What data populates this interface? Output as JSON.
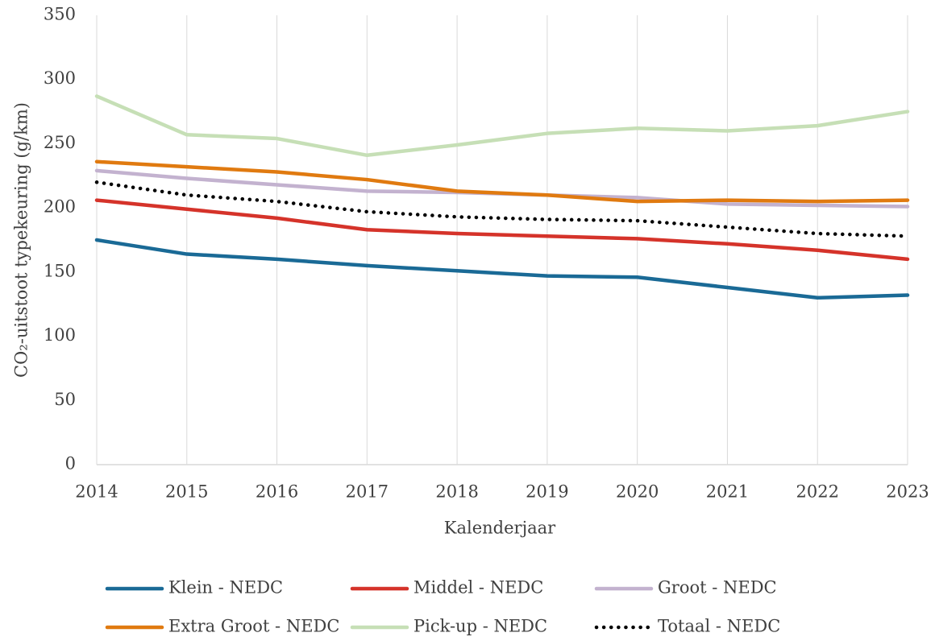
{
  "chart_data": {
    "type": "line",
    "x_label": "Kalenderjaar",
    "y_label": "CO₂-uitstoot typekeuring (g/km)",
    "x": [
      2014,
      2015,
      2016,
      2017,
      2018,
      2019,
      2020,
      2021,
      2022,
      2023
    ],
    "xlim": [
      2014,
      2023
    ],
    "xticks": [
      2014,
      2015,
      2016,
      2017,
      2018,
      2019,
      2020,
      2021,
      2022,
      2023
    ],
    "ylim": [
      0,
      350
    ],
    "yticks": [
      0,
      50,
      100,
      150,
      200,
      250,
      300,
      350
    ],
    "grid": true,
    "legend": "bottom",
    "series": [
      {
        "name": "Klein - NEDC",
        "color": "#1a6a96",
        "values": [
          175,
          164,
          160,
          155,
          151,
          147,
          146,
          138,
          130,
          132
        ]
      },
      {
        "name": "Middel - NEDC",
        "color": "#d5332a",
        "values": [
          206,
          199,
          192,
          183,
          180,
          178,
          176,
          172,
          167,
          160
        ]
      },
      {
        "name": "Groot - NEDC",
        "color": "#c3b2cf",
        "values": [
          229,
          223,
          218,
          213,
          212,
          210,
          208,
          203,
          202,
          201
        ]
      },
      {
        "name": "Extra Groot - NEDC",
        "color": "#e07a10",
        "values": [
          236,
          232,
          228,
          222,
          213,
          210,
          205,
          206,
          205,
          206
        ]
      },
      {
        "name": "Pick-up - NEDC",
        "color": "#c6dfb6",
        "values": [
          287,
          257,
          254,
          241,
          249,
          258,
          262,
          260,
          264,
          275
        ]
      },
      {
        "name": "Totaal - NEDC",
        "color": "#000000",
        "dash": "dotted",
        "values": [
          220,
          210,
          205,
          197,
          193,
          191,
          190,
          185,
          180,
          178
        ]
      }
    ]
  }
}
